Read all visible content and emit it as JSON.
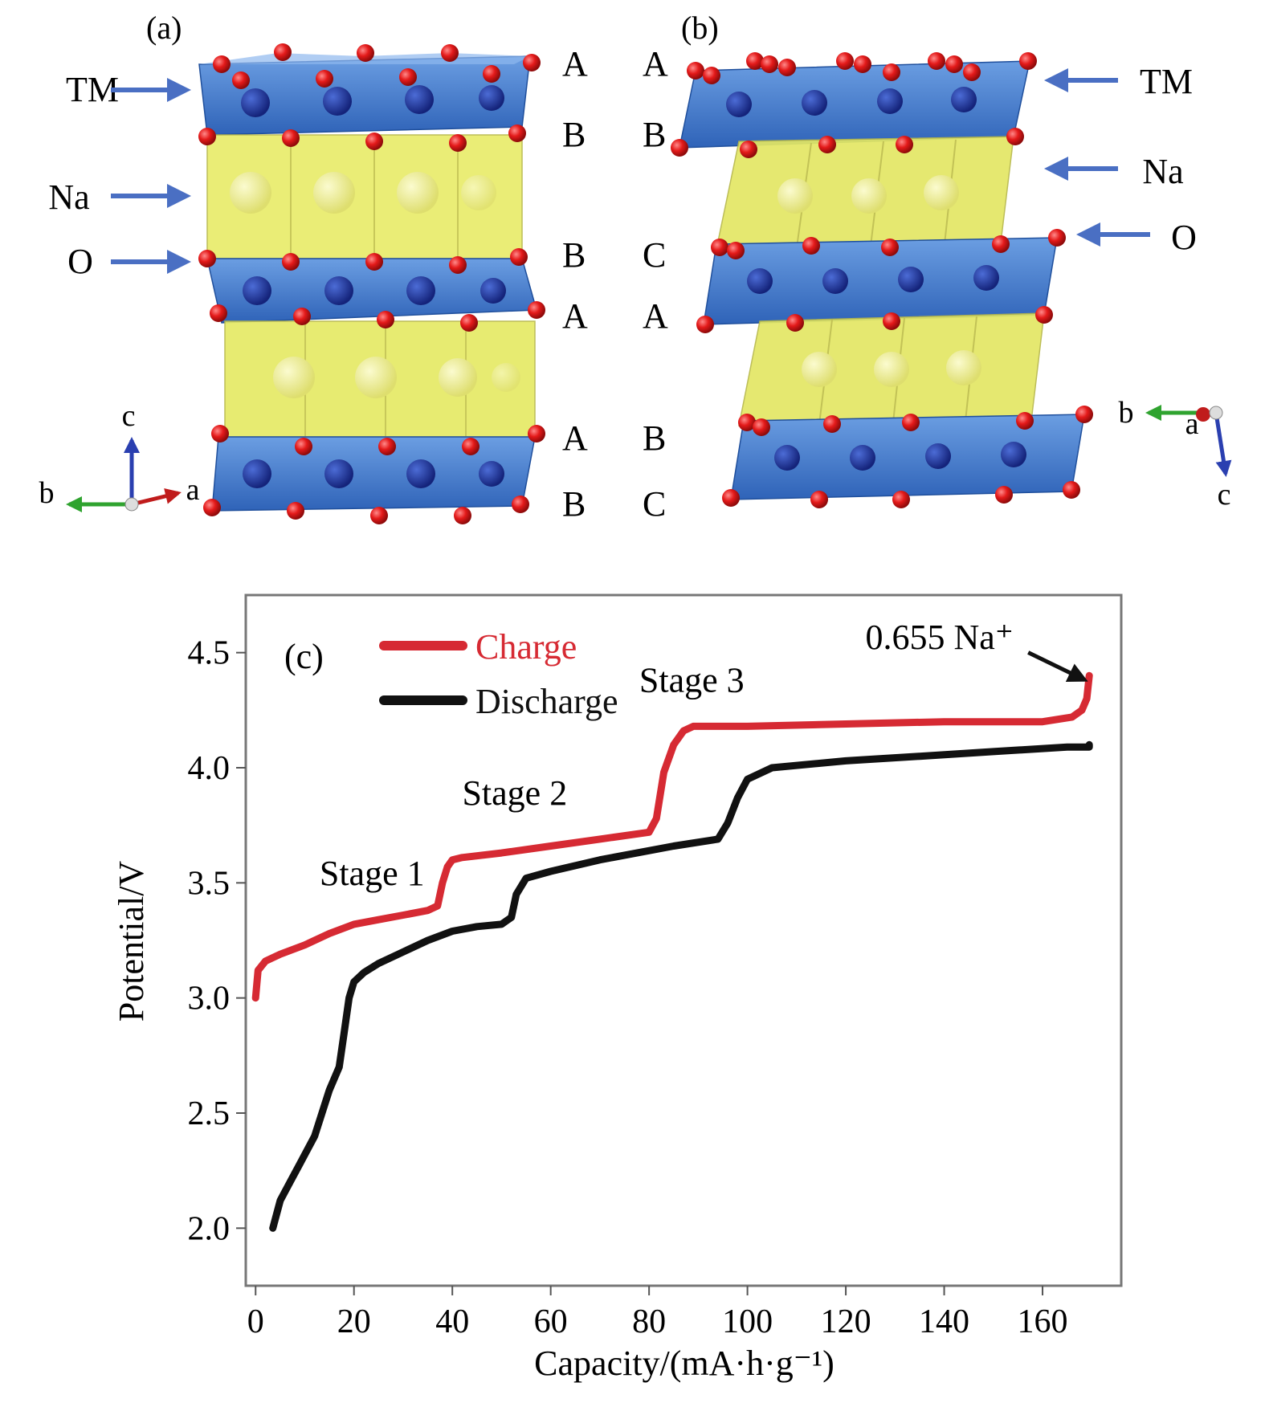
{
  "panel_a": {
    "label": "(a)",
    "arrows": [
      "TM",
      "Na",
      "O"
    ],
    "stacking": [
      "A",
      "B",
      "B",
      "A",
      "A",
      "B"
    ],
    "axes": {
      "c": "c",
      "b": "b",
      "a": "a"
    }
  },
  "panel_b": {
    "label": "(b)",
    "arrows": [
      "TM",
      "Na",
      "O"
    ],
    "stacking": [
      "A",
      "B",
      "C",
      "A",
      "B",
      "C"
    ],
    "axes": {
      "b": "b",
      "a": "a",
      "c": "c"
    }
  },
  "chart_data": {
    "type": "line",
    "panel_label": "(c)",
    "xlabel": "Capacity/(mA·h·g⁻¹)",
    "ylabel": "Potential/V",
    "xlim": [
      -2,
      176
    ],
    "ylim": [
      1.75,
      4.75
    ],
    "xticks": [
      0,
      20,
      40,
      60,
      80,
      100,
      120,
      140,
      160
    ],
    "yticks": [
      2.0,
      2.5,
      3.0,
      3.5,
      4.0,
      4.5
    ],
    "xtick_labels": [
      "0",
      "20",
      "40",
      "60",
      "80",
      "100",
      "120",
      "140",
      "160"
    ],
    "ytick_labels": [
      "2.0",
      "2.5",
      "3.0",
      "3.5",
      "4.0",
      "4.5"
    ],
    "legend_position": "top-left",
    "series": [
      {
        "name": "Charge",
        "color": "#d62a33",
        "x": [
          0,
          0.5,
          2,
          5,
          10,
          15,
          20,
          25,
          30,
          35,
          37,
          38,
          39,
          40,
          42,
          50,
          60,
          70,
          80,
          81.5,
          83,
          85,
          87,
          89,
          100,
          120,
          140,
          160,
          166,
          168,
          169,
          169.5
        ],
        "y": [
          3.0,
          3.12,
          3.16,
          3.19,
          3.23,
          3.28,
          3.32,
          3.34,
          3.36,
          3.38,
          3.4,
          3.5,
          3.57,
          3.6,
          3.61,
          3.63,
          3.66,
          3.69,
          3.72,
          3.78,
          3.98,
          4.1,
          4.16,
          4.18,
          4.18,
          4.19,
          4.2,
          4.2,
          4.22,
          4.25,
          4.3,
          4.4
        ]
      },
      {
        "name": "Discharge",
        "color": "#111111",
        "x": [
          169.5,
          169.5,
          165,
          150,
          135,
          120,
          105,
          100,
          98,
          96,
          94,
          85,
          70,
          60,
          55,
          53,
          52,
          50,
          45,
          40,
          35,
          30,
          25,
          22,
          20,
          19,
          18,
          17,
          15,
          12,
          9,
          7,
          5,
          3.5
        ],
        "y": [
          4.1,
          4.09,
          4.09,
          4.07,
          4.05,
          4.03,
          4.0,
          3.95,
          3.87,
          3.76,
          3.69,
          3.66,
          3.6,
          3.55,
          3.52,
          3.45,
          3.35,
          3.32,
          3.31,
          3.29,
          3.25,
          3.2,
          3.15,
          3.11,
          3.07,
          3.0,
          2.85,
          2.7,
          2.6,
          2.4,
          2.28,
          2.2,
          2.12,
          2.0
        ]
      }
    ],
    "annotations": [
      {
        "text": "Stage 1",
        "x": 13,
        "y": 3.49
      },
      {
        "text": "Stage 2",
        "x": 42,
        "y": 3.84
      },
      {
        "text": "Stage 3",
        "x": 78,
        "y": 4.33
      }
    ],
    "arrow_annotation": {
      "text": "0.655 Na⁺",
      "x": 169.5,
      "y": 4.41
    }
  }
}
